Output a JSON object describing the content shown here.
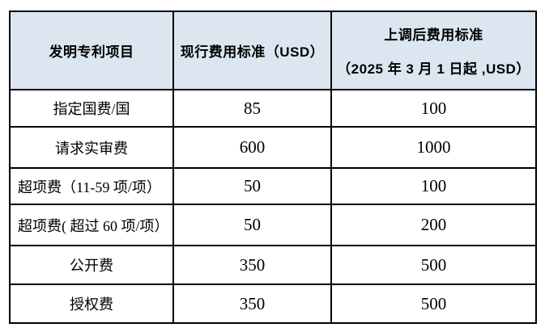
{
  "table": {
    "title": "patent-fee-table",
    "header": {
      "col_item": "发明专利项目",
      "col_current": "现行费用标准（USD）",
      "col_new_line1": "上调后费用标准",
      "col_new_line2": "（2025 年 3 月 1 日起 ,USD）"
    },
    "rows": [
      {
        "item": "指定国费/国",
        "current": "85",
        "new": "100"
      },
      {
        "item": "请求实审费",
        "current": "600",
        "new": "1000"
      },
      {
        "item": "超项费（11-59 项/项）",
        "current": "50",
        "new": "100"
      },
      {
        "item": "超项费( 超过 60 项/项）",
        "current": "50",
        "new": "200"
      },
      {
        "item": "公开费",
        "current": "350",
        "new": "500"
      },
      {
        "item": "授权费",
        "current": "350",
        "new": "500"
      }
    ],
    "colors": {
      "header_bg": "#dce6f1",
      "border": "#000000",
      "text": "#000000",
      "page_bg": "#ffffff"
    }
  }
}
